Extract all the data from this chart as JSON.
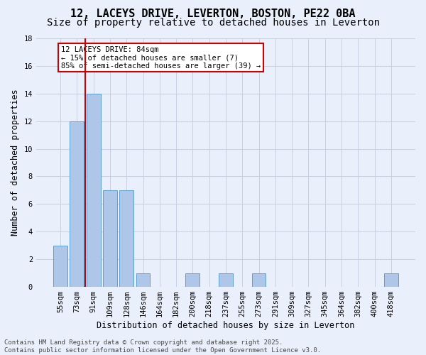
{
  "title": "12, LACEYS DRIVE, LEVERTON, BOSTON, PE22 0BA",
  "subtitle": "Size of property relative to detached houses in Leverton",
  "xlabel": "Distribution of detached houses by size in Leverton",
  "ylabel": "Number of detached properties",
  "bar_labels": [
    "55sqm",
    "73sqm",
    "91sqm",
    "109sqm",
    "128sqm",
    "146sqm",
    "164sqm",
    "182sqm",
    "200sqm",
    "218sqm",
    "237sqm",
    "255sqm",
    "273sqm",
    "291sqm",
    "309sqm",
    "327sqm",
    "345sqm",
    "364sqm",
    "382sqm",
    "400sqm",
    "418sqm"
  ],
  "bar_values": [
    3,
    12,
    14,
    7,
    7,
    1,
    0,
    0,
    1,
    0,
    1,
    0,
    1,
    0,
    0,
    0,
    0,
    0,
    0,
    0,
    1
  ],
  "bar_color": "#aec6e8",
  "bar_edgecolor": "#5a9fd4",
  "background_color": "#eaf0fb",
  "grid_color": "#c8d0e0",
  "vline_color": "#cc0000",
  "vline_x_index": 1.5,
  "annotation_text": "12 LACEYS DRIVE: 84sqm\n← 15% of detached houses are smaller (7)\n85% of semi-detached houses are larger (39) →",
  "annotation_box_edgecolor": "#cc0000",
  "annotation_box_facecolor": "#ffffff",
  "ylim": [
    0,
    18
  ],
  "yticks": [
    0,
    2,
    4,
    6,
    8,
    10,
    12,
    14,
    16,
    18
  ],
  "footer_text": "Contains HM Land Registry data © Crown copyright and database right 2025.\nContains public sector information licensed under the Open Government Licence v3.0.",
  "title_fontsize": 11,
  "subtitle_fontsize": 10,
  "xlabel_fontsize": 8.5,
  "ylabel_fontsize": 8.5,
  "annot_fontsize": 7.5,
  "tick_fontsize": 7.5,
  "footer_fontsize": 6.5
}
